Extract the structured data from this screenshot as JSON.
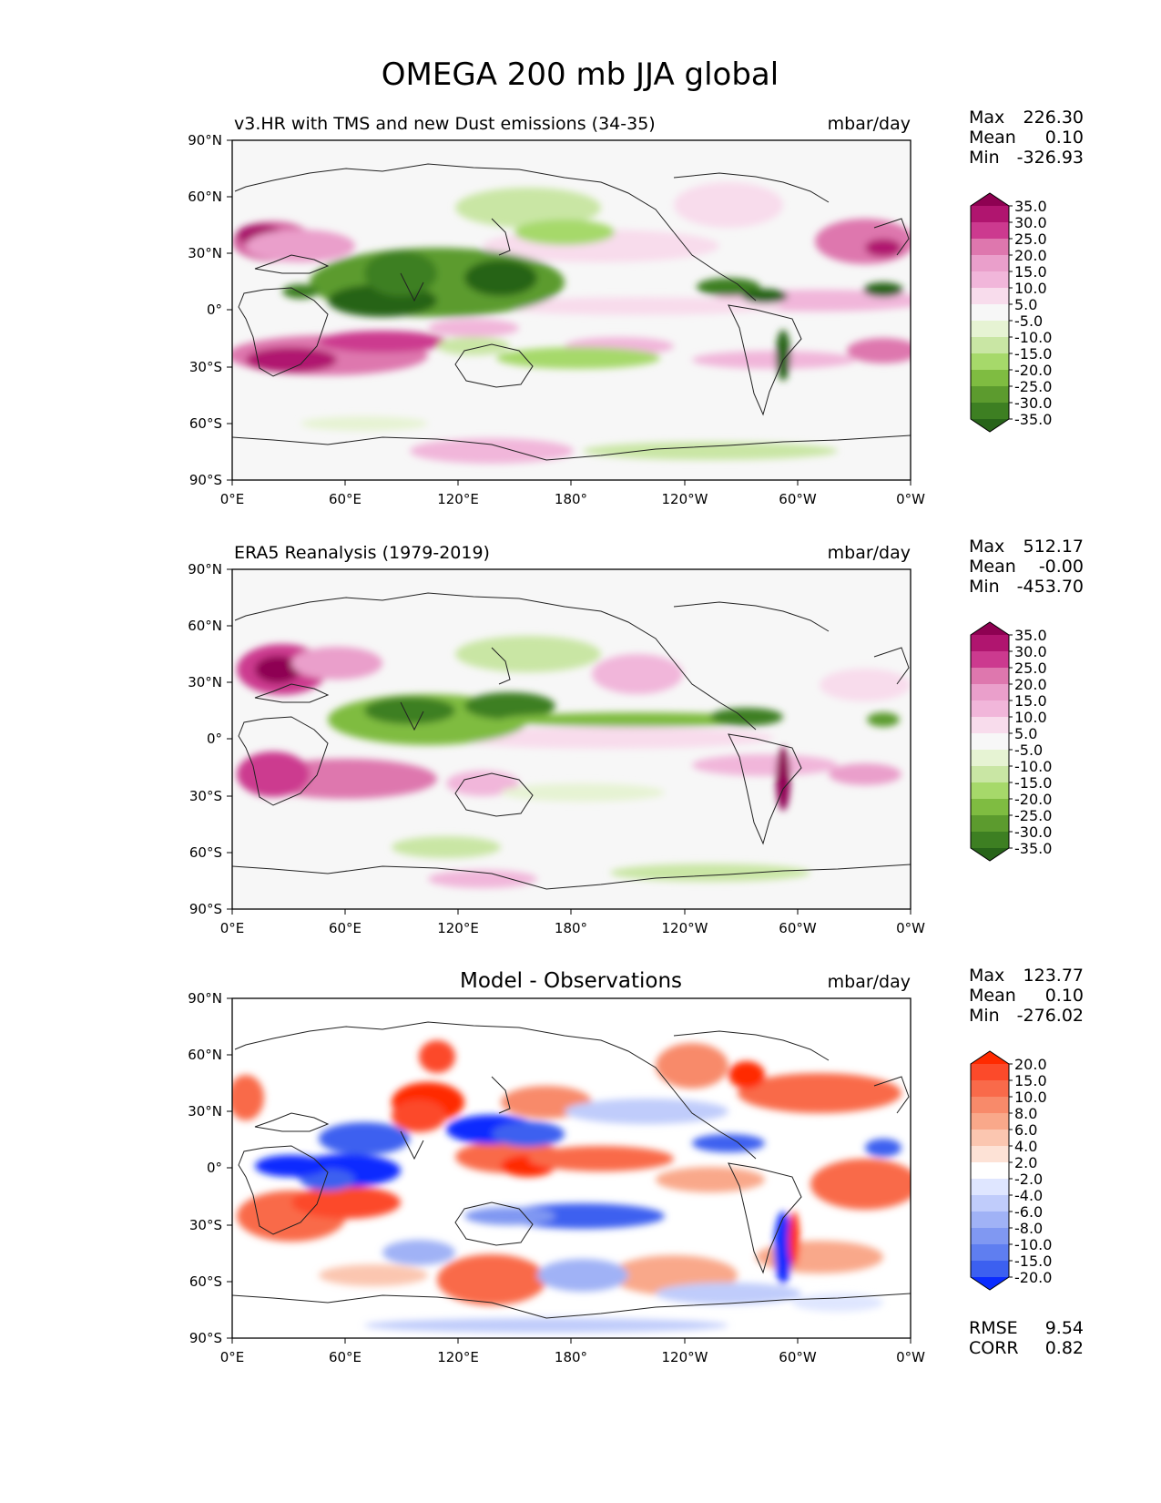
{
  "figure_title": "OMEGA 200 mb JJA global",
  "chart_data": [
    {
      "type": "heatmap",
      "title": "v3.HR with TMS and new Dust emissions (34-35)",
      "units": "mbar/day",
      "x_ticks": [
        "0°E",
        "60°E",
        "120°E",
        "180°",
        "120°W",
        "60°W",
        "0°W"
      ],
      "y_ticks": [
        "90°N",
        "60°N",
        "30°N",
        "0°",
        "30°S",
        "60°S",
        "90°S"
      ],
      "xlim": [
        0,
        360
      ],
      "ylim": [
        -90,
        90
      ],
      "stats": {
        "max_label": "Max",
        "max": "226.30",
        "mean_label": "Mean",
        "mean": "0.10",
        "min_label": "Min",
        "min": "-326.93"
      },
      "colorbar": {
        "labels": [
          "35.0",
          "30.0",
          "25.0",
          "20.0",
          "15.0",
          "10.0",
          "5.0",
          "-5.0",
          "-10.0",
          "-15.0",
          "-20.0",
          "-25.0",
          "-30.0",
          "-35.0"
        ],
        "colors": [
          "#8e0152",
          "#b0156f",
          "#cc3a8f",
          "#de77ae",
          "#ea9fcb",
          "#f1b6da",
          "#f8dcec",
          "#f7f7f7",
          "#e6f3d3",
          "#c9e6a4",
          "#a6d96a",
          "#7fbc41",
          "#5c9b2e",
          "#3d7f22",
          "#276419"
        ],
        "extend": "both"
      }
    },
    {
      "type": "heatmap",
      "title": "ERA5 Reanalysis (1979-2019)",
      "units": "mbar/day",
      "x_ticks": [
        "0°E",
        "60°E",
        "120°E",
        "180°",
        "120°W",
        "60°W",
        "0°W"
      ],
      "y_ticks": [
        "90°N",
        "60°N",
        "30°N",
        "0°",
        "30°S",
        "60°S",
        "90°S"
      ],
      "xlim": [
        0,
        360
      ],
      "ylim": [
        -90,
        90
      ],
      "stats": {
        "max_label": "Max",
        "max": "512.17",
        "mean_label": "Mean",
        "mean": "-0.00",
        "min_label": "Min",
        "min": "-453.70"
      },
      "colorbar": {
        "labels": [
          "35.0",
          "30.0",
          "25.0",
          "20.0",
          "15.0",
          "10.0",
          "5.0",
          "-5.0",
          "-10.0",
          "-15.0",
          "-20.0",
          "-25.0",
          "-30.0",
          "-35.0"
        ],
        "colors": [
          "#8e0152",
          "#b0156f",
          "#cc3a8f",
          "#de77ae",
          "#ea9fcb",
          "#f1b6da",
          "#f8dcec",
          "#f7f7f7",
          "#e6f3d3",
          "#c9e6a4",
          "#a6d96a",
          "#7fbc41",
          "#5c9b2e",
          "#3d7f22",
          "#276419"
        ],
        "extend": "both"
      }
    },
    {
      "type": "heatmap",
      "title": "Model - Observations",
      "units": "mbar/day",
      "x_ticks": [
        "0°E",
        "60°E",
        "120°E",
        "180°",
        "120°W",
        "60°W",
        "0°W"
      ],
      "y_ticks": [
        "90°N",
        "60°N",
        "30°N",
        "0°",
        "30°S",
        "60°S",
        "90°S"
      ],
      "xlim": [
        0,
        360
      ],
      "ylim": [
        -90,
        90
      ],
      "stats": {
        "max_label": "Max",
        "max": "123.77",
        "mean_label": "Mean",
        "mean": "0.10",
        "min_label": "Min",
        "min": "-276.02"
      },
      "metrics": {
        "rmse_label": "RMSE",
        "rmse": "9.54",
        "corr_label": "CORR",
        "corr": "0.82"
      },
      "colorbar": {
        "labels": [
          "20.0",
          "15.0",
          "10.0",
          "8.0",
          "6.0",
          "4.0",
          "2.0",
          "-2.0",
          "-4.0",
          "-6.0",
          "-8.0",
          "-10.0",
          "-15.0",
          "-20.0"
        ],
        "colors": [
          "#ff2a00",
          "#fc4a2a",
          "#f96a4a",
          "#f88a6a",
          "#f9a88a",
          "#fbc6b0",
          "#fde2d6",
          "#ffffff",
          "#dfe6ff",
          "#c0ccfb",
          "#a0b2f6",
          "#8098f2",
          "#5f7ef0",
          "#3c60f0",
          "#0a2cff"
        ],
        "extend": "both"
      }
    }
  ]
}
